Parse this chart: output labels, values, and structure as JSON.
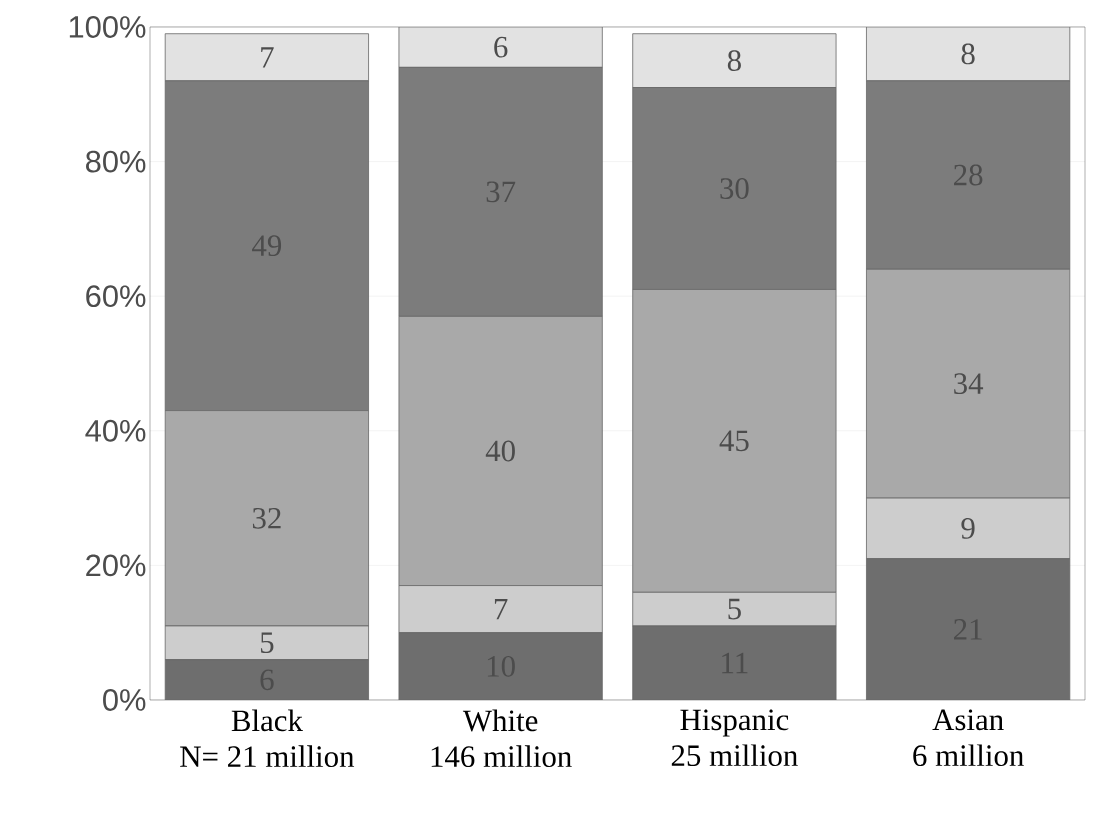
{
  "chart_data": {
    "type": "bar",
    "stacked": true,
    "data_labels": true,
    "grid": "y",
    "categories": [
      "Black\nN= 21 million",
      "White\n146 million",
      "Hispanic\n25 million",
      "Asian\n6 million"
    ],
    "series": [
      {
        "color": "#6e6e6e",
        "values": [
          6,
          10,
          11,
          21
        ]
      },
      {
        "color": "#cdcdcd",
        "values": [
          5,
          7,
          5,
          9
        ]
      },
      {
        "color": "#a9a9a9",
        "values": [
          32,
          40,
          45,
          34
        ]
      },
      {
        "color": "#7c7c7c",
        "values": [
          49,
          37,
          30,
          28
        ]
      },
      {
        "color": "#e2e2e2",
        "values": [
          7,
          6,
          8,
          8
        ]
      }
    ],
    "ylim": [
      0,
      100
    ],
    "yticks": [
      {
        "value": 0,
        "label": "0%"
      },
      {
        "value": 20,
        "label": "20%"
      },
      {
        "value": 40,
        "label": "40%"
      },
      {
        "value": 60,
        "label": "60%"
      },
      {
        "value": 80,
        "label": "80%"
      },
      {
        "value": 100,
        "label": "100%"
      }
    ]
  }
}
